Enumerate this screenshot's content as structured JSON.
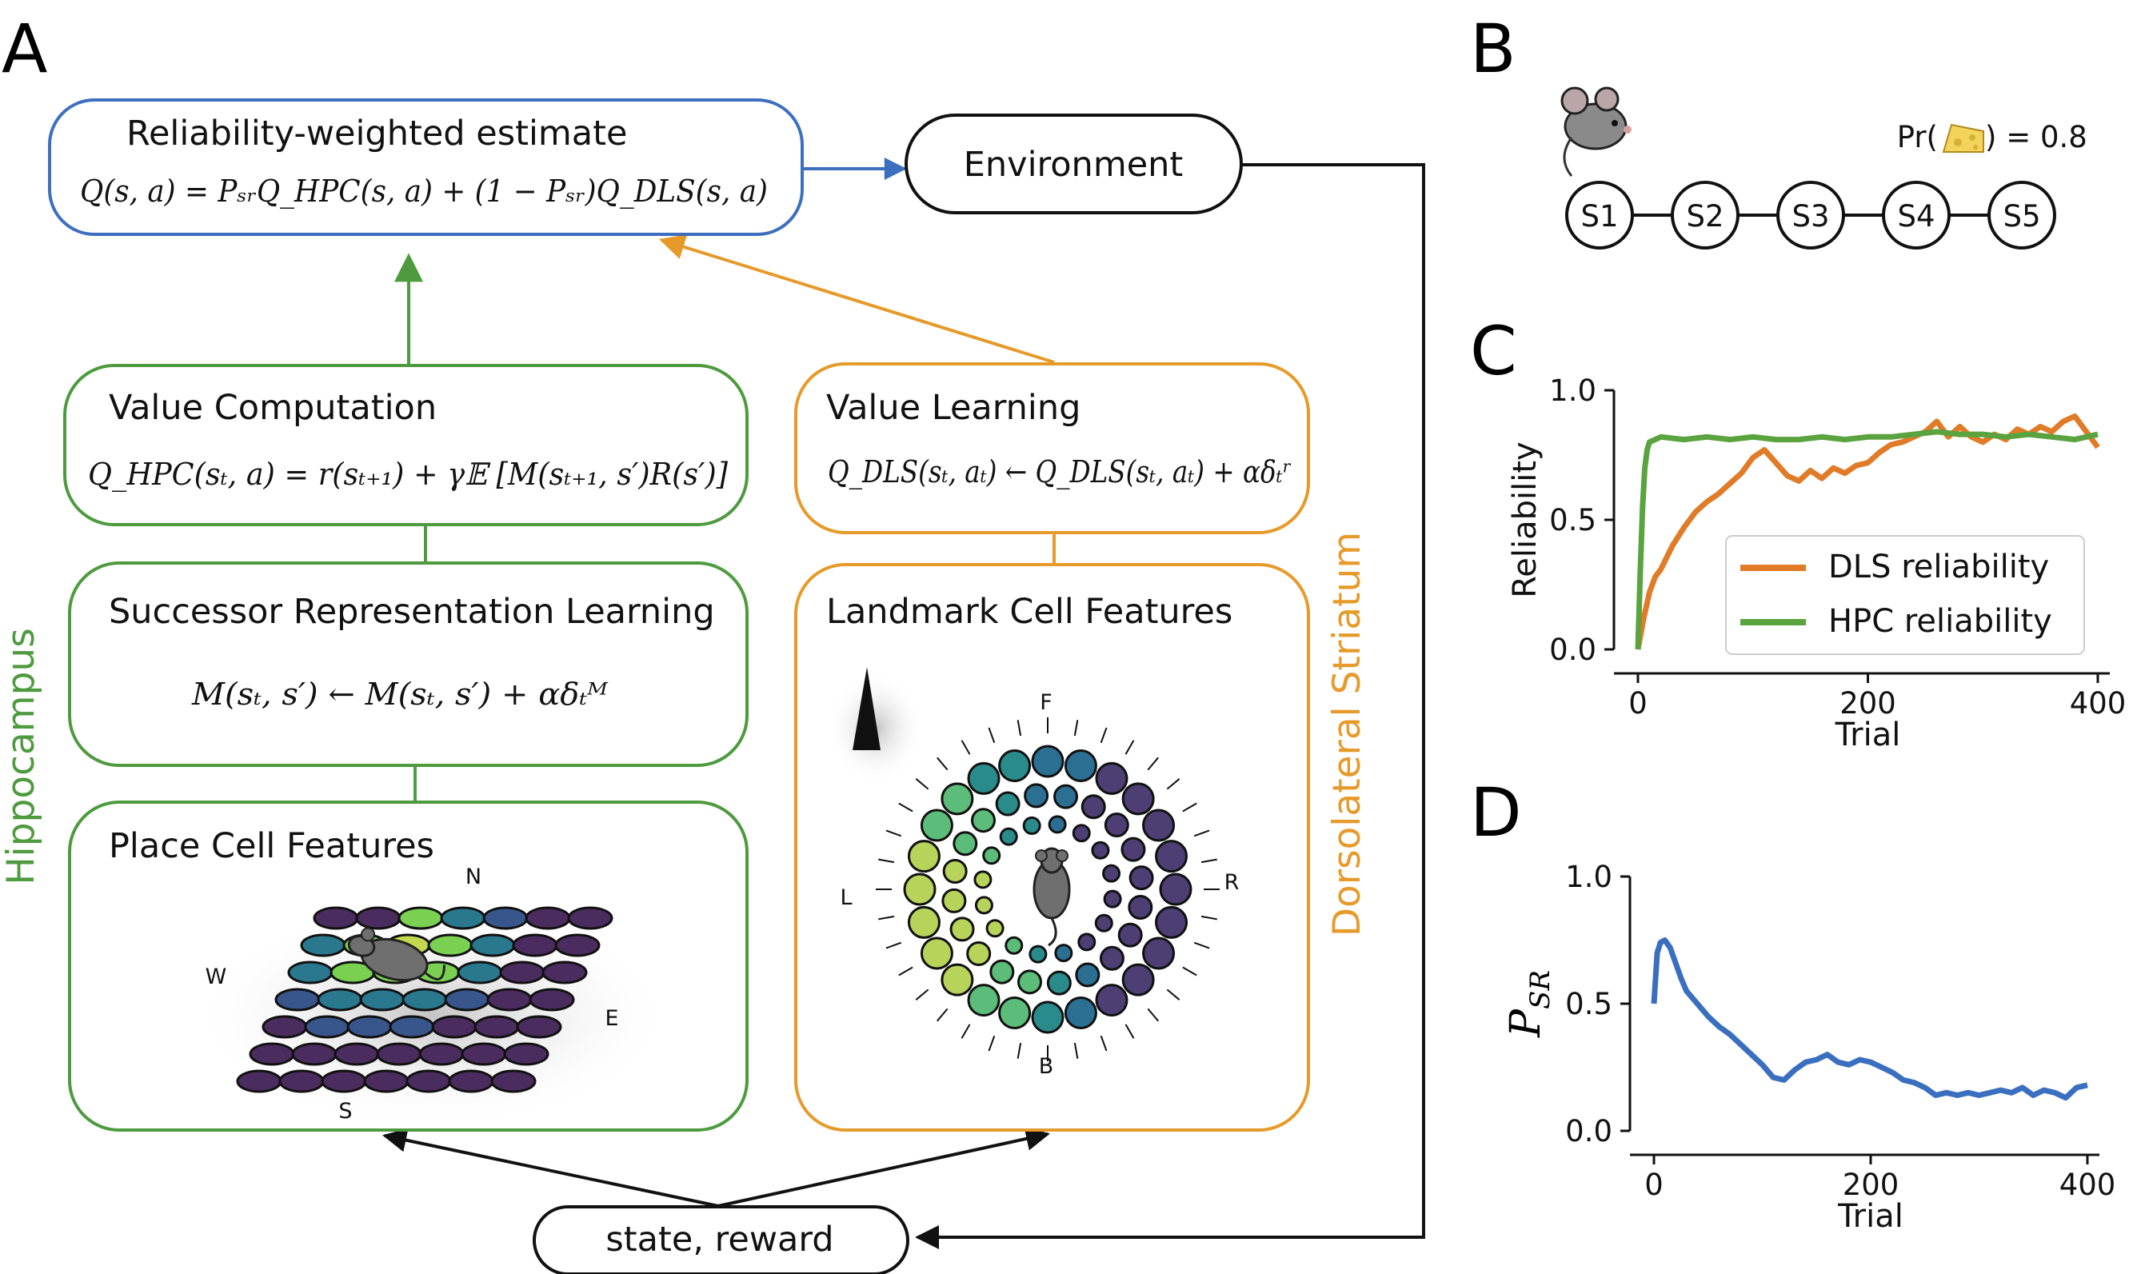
{
  "panels": {
    "a": "A",
    "b": "B",
    "c": "C",
    "d": "D"
  },
  "boxes": {
    "reliability": {
      "title": "Reliability-weighted estimate",
      "formula": "Q(s, a) = PₛᵣQ_HPC(s, a) + (1 − Pₛᵣ)Q_DLS(s, a)"
    },
    "environment": {
      "label": "Environment"
    },
    "value_computation": {
      "title": "Value Computation",
      "formula": "Q_HPC(sₜ, a) = r(sₜ₊₁) + γ𝔼 [M(sₜ₊₁, s′)R(s′)]"
    },
    "value_learning": {
      "title": "Value Learning",
      "formula": "Q_DLS(sₜ, aₜ) ← Q_DLS(sₜ, aₜ) + αδₜʳ"
    },
    "sr_learning": {
      "title": "Successor Representation Learning",
      "formula": "M(sₜ, s′) ← M(sₜ, s′) + αδₜᴹ"
    },
    "landmark": {
      "title": "Landmark Cell Features",
      "compass": {
        "front": "F",
        "back": "B",
        "left": "L",
        "right": "R"
      }
    },
    "place": {
      "title": "Place Cell Features",
      "compass": {
        "north": "N",
        "south": "S",
        "west": "W",
        "east": "E"
      }
    },
    "state_reward": {
      "label": "state, reward"
    }
  },
  "side_labels": {
    "hippocampus": "Hippocampus",
    "striatum": "Dorsolateral Striatum"
  },
  "task": {
    "states": [
      "S1",
      "S2",
      "S3",
      "S4",
      "S5"
    ],
    "reward_prob_prefix": "Pr(",
    "reward_prob_suffix": ") = 0.8",
    "reward_icon": "cheese-icon",
    "agent_icon": "mouse-icon"
  },
  "colors": {
    "hpc": "#4e9a3f",
    "dls": "#e69a2a",
    "reliability_box": "#3d6fbf",
    "dls_line": "#e07b28",
    "hpc_line": "#5aa33f",
    "psr_line": "#3a6fbf"
  },
  "chart_data": [
    {
      "type": "line",
      "xlabel": "Trial",
      "ylabel": "Reliability",
      "xlim": [
        0,
        400
      ],
      "ylim": [
        0,
        1
      ],
      "xticks": [
        "0",
        "200",
        "400"
      ],
      "yticks": [
        "0.0",
        "0.5",
        "1.0"
      ],
      "legend": "lower-right",
      "series": [
        {
          "name": "DLS reliability",
          "x": [
            0,
            5,
            10,
            15,
            20,
            30,
            40,
            50,
            60,
            70,
            80,
            90,
            100,
            110,
            120,
            130,
            140,
            150,
            160,
            170,
            180,
            190,
            200,
            210,
            220,
            230,
            240,
            250,
            260,
            270,
            280,
            290,
            300,
            310,
            320,
            330,
            340,
            350,
            360,
            370,
            380,
            390,
            400
          ],
          "y": [
            0.0,
            0.12,
            0.22,
            0.28,
            0.31,
            0.4,
            0.47,
            0.53,
            0.57,
            0.6,
            0.64,
            0.68,
            0.74,
            0.77,
            0.72,
            0.67,
            0.65,
            0.69,
            0.66,
            0.7,
            0.68,
            0.71,
            0.72,
            0.76,
            0.79,
            0.8,
            0.82,
            0.84,
            0.88,
            0.82,
            0.86,
            0.82,
            0.8,
            0.83,
            0.81,
            0.85,
            0.83,
            0.86,
            0.84,
            0.88,
            0.9,
            0.84,
            0.78
          ]
        },
        {
          "name": "HPC reliability",
          "x": [
            0,
            2,
            4,
            6,
            8,
            10,
            15,
            20,
            40,
            60,
            80,
            100,
            120,
            140,
            160,
            180,
            200,
            220,
            240,
            260,
            280,
            300,
            320,
            340,
            360,
            380,
            400
          ],
          "y": [
            0.0,
            0.3,
            0.55,
            0.7,
            0.77,
            0.8,
            0.81,
            0.82,
            0.81,
            0.82,
            0.81,
            0.82,
            0.81,
            0.81,
            0.82,
            0.81,
            0.82,
            0.82,
            0.83,
            0.84,
            0.83,
            0.83,
            0.82,
            0.83,
            0.82,
            0.81,
            0.83
          ]
        }
      ]
    },
    {
      "type": "line",
      "xlabel": "Trial",
      "ylabel": "P_SR",
      "xlim": [
        0,
        400
      ],
      "ylim": [
        0,
        1
      ],
      "xticks": [
        "0",
        "200",
        "400"
      ],
      "yticks": [
        "0.0",
        "0.5",
        "1.0"
      ],
      "series": [
        {
          "name": "",
          "x": [
            0,
            3,
            6,
            10,
            15,
            20,
            25,
            30,
            40,
            50,
            60,
            70,
            80,
            90,
            100,
            110,
            120,
            130,
            140,
            150,
            160,
            170,
            180,
            190,
            200,
            210,
            220,
            230,
            240,
            250,
            260,
            270,
            280,
            290,
            300,
            310,
            320,
            330,
            340,
            350,
            360,
            370,
            380,
            390,
            400
          ],
          "y": [
            0.5,
            0.7,
            0.74,
            0.75,
            0.72,
            0.66,
            0.6,
            0.55,
            0.5,
            0.45,
            0.41,
            0.38,
            0.34,
            0.3,
            0.26,
            0.21,
            0.2,
            0.24,
            0.27,
            0.28,
            0.3,
            0.27,
            0.26,
            0.28,
            0.27,
            0.25,
            0.23,
            0.2,
            0.19,
            0.17,
            0.14,
            0.15,
            0.14,
            0.15,
            0.14,
            0.15,
            0.16,
            0.15,
            0.17,
            0.14,
            0.16,
            0.15,
            0.13,
            0.17,
            0.18
          ]
        }
      ]
    }
  ]
}
